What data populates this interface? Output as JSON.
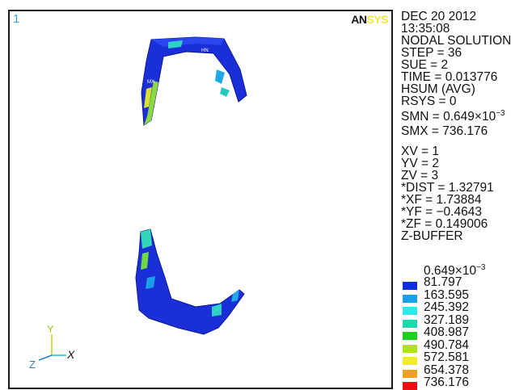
{
  "viewport": {
    "window_number": "1",
    "logo": {
      "part_a": "AN",
      "part_b": "SYS"
    },
    "triad": {
      "y_label": "Y",
      "z_label": "Z",
      "x_label": "X"
    },
    "model_labels": {
      "hn": "HN",
      "mx": "MX"
    }
  },
  "info": {
    "date": "DEC 20 2012",
    "time": "13:35:08",
    "solution": "NODAL SOLUTION",
    "step": "STEP = 36",
    "sub": "SUE = 2",
    "sim_time": "TIME = 0.013776",
    "item": "HSUM  (AVG)",
    "rsys": "RSYS = 0",
    "smn_prefix": "SMN = 0.649×10",
    "smn_exp": "−3",
    "smx": "SMX = 736.176",
    "xv": "XV = 1",
    "yv": "YV = 2",
    "zv": "ZV = 3",
    "dist": "*DIST = 1.32791",
    "xf": "*XF = 1.73884",
    "yf": "*YF = −0.4643",
    "zf": "*ZF = 0.149006",
    "buffer": "Z-BUFFER"
  },
  "legend": {
    "top_prefix": "0.649×10",
    "top_exp": "−3",
    "entries": [
      {
        "label": "81.797",
        "color": "#1030e0"
      },
      {
        "label": "163.595",
        "color": "#1aa0e8"
      },
      {
        "label": "245.392",
        "color": "#30e8e8"
      },
      {
        "label": "327.189",
        "color": "#20d8b0"
      },
      {
        "label": "408.987",
        "color": "#20d020"
      },
      {
        "label": "490.784",
        "color": "#b0e020"
      },
      {
        "label": "572.581",
        "color": "#f0f020"
      },
      {
        "label": "654.378",
        "color": "#f0a020"
      },
      {
        "label": "736.176",
        "color": "#e81010"
      }
    ]
  }
}
